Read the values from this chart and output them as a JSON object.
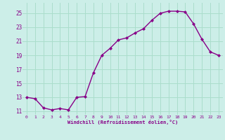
{
  "x": [
    0,
    1,
    2,
    3,
    4,
    5,
    6,
    7,
    8,
    9,
    10,
    11,
    12,
    13,
    14,
    15,
    16,
    17,
    18,
    19,
    20,
    21,
    22,
    23
  ],
  "y": [
    13.0,
    12.8,
    11.5,
    11.2,
    11.4,
    11.2,
    13.0,
    13.1,
    16.5,
    19.0,
    20.0,
    21.2,
    21.5,
    22.2,
    22.8,
    24.0,
    25.0,
    25.3,
    25.3,
    25.2,
    23.5,
    21.3,
    19.5,
    19.0
  ],
  "line_color": "#880088",
  "marker": "D",
  "marker_size": 2.0,
  "bg_color": "#cceee8",
  "grid_color": "#aaddcc",
  "xlabel": "Windchill (Refroidissement éolien,°C)",
  "ytick_labels": [
    "11",
    "13",
    "15",
    "17",
    "19",
    "21",
    "23",
    "25"
  ],
  "ytick_vals": [
    11,
    13,
    15,
    17,
    19,
    21,
    23,
    25
  ],
  "xtick_vals": [
    0,
    1,
    2,
    3,
    4,
    5,
    6,
    7,
    8,
    9,
    10,
    11,
    12,
    13,
    14,
    15,
    16,
    17,
    18,
    19,
    20,
    21,
    22,
    23
  ],
  "ylim": [
    10.5,
    26.5
  ],
  "xlim": [
    -0.5,
    23.5
  ],
  "label_color": "#880088",
  "tick_color": "#880088",
  "linewidth": 1.0
}
